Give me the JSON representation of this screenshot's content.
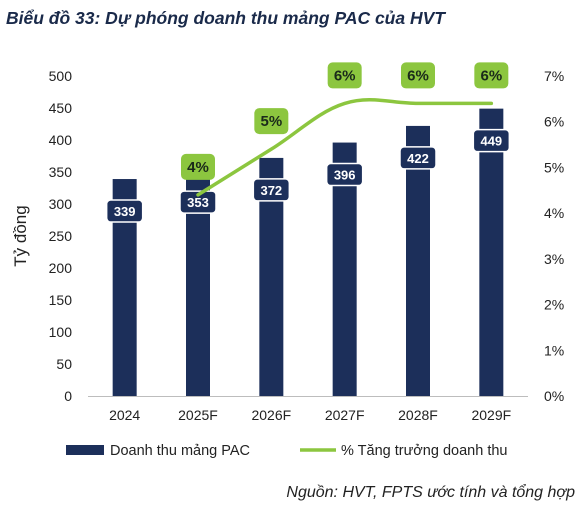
{
  "title": "Biểu đồ 33: Dự phóng doanh thu mảng PAC của HVT",
  "source": "Nguồn: HVT, FPTS ước tính và tổng hợp",
  "colors": {
    "bar": "#1c2f5a",
    "line": "#8cc63f",
    "label_bg": "#1c2f5a",
    "line_label_bg": "#8cc63f"
  },
  "chart_data": {
    "type": "bar",
    "categories": [
      "2024",
      "2025F",
      "2026F",
      "2027F",
      "2028F",
      "2029F"
    ],
    "series": [
      {
        "name": "Doanh thu mảng PAC",
        "type": "bar",
        "axis": "left",
        "values": [
          339,
          353,
          372,
          396,
          422,
          449
        ],
        "labels": [
          "339",
          "353",
          "372",
          "396",
          "422",
          "449"
        ]
      },
      {
        "name": "% Tăng trưởng doanh thu",
        "type": "line",
        "axis": "right",
        "values": [
          null,
          4.4,
          5.4,
          6.4,
          6.4,
          6.4
        ],
        "labels": [
          "",
          "4%",
          "5%",
          "6%",
          "6%",
          "6%"
        ]
      }
    ],
    "ylabel": "Tỷ đồng",
    "ylim": [
      0,
      500
    ],
    "yticks": [
      "0",
      "50",
      "100",
      "150",
      "200",
      "250",
      "300",
      "350",
      "400",
      "450",
      "500"
    ],
    "y2lim": [
      0,
      7
    ],
    "y2ticks": [
      "0%",
      "1%",
      "2%",
      "3%",
      "4%",
      "5%",
      "6%",
      "7%"
    ],
    "grid": false,
    "legend": "bottom"
  }
}
